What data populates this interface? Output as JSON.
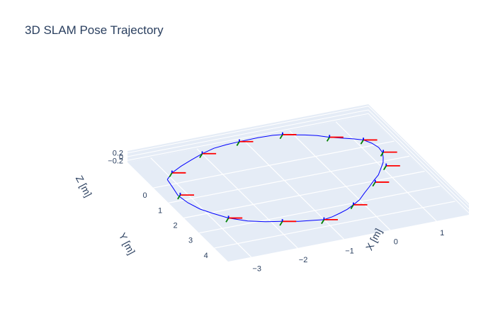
{
  "chart_data": {
    "type": "scatter3d",
    "title": "3D SLAM Pose Trajectory",
    "xlabel": "X [m]",
    "ylabel": "Y [m]",
    "zlabel": "Z [m]",
    "xlim": [
      -3.5,
      1.7
    ],
    "ylim": [
      -1.7,
      4.9
    ],
    "zlim": [
      -0.3,
      0.3
    ],
    "x_ticks": [
      {
        "v": -3,
        "t": "−3"
      },
      {
        "v": -2,
        "t": "−2"
      },
      {
        "v": -1,
        "t": "−1"
      },
      {
        "v": 0,
        "t": "0"
      },
      {
        "v": 1,
        "t": "1"
      }
    ],
    "y_ticks": [
      {
        "v": 0,
        "t": "0"
      },
      {
        "v": 1,
        "t": "1"
      },
      {
        "v": 2,
        "t": "2"
      },
      {
        "v": 3,
        "t": "3"
      },
      {
        "v": 4,
        "t": "4"
      }
    ],
    "z_ticks": [
      {
        "v": 0.2,
        "t": "0.2"
      },
      {
        "v": 0,
        "t": "0"
      },
      {
        "v": -0.2,
        "t": "−0.2"
      }
    ],
    "grid": true,
    "background": "#e5ecf6",
    "line_color": "#0000ff",
    "axis_colors": {
      "x": "#ff0000",
      "y": "#008000",
      "z": "#0000ff"
    },
    "series": [
      {
        "mode": "lines",
        "x": [
          -3.2,
          -3.0,
          -2.7,
          -2.4,
          -2.1,
          -1.8,
          -1.5,
          -1.2,
          -0.8,
          -0.5,
          -0.3,
          -0.1,
          0.1,
          0.3,
          0.5,
          0.7,
          0.9,
          1.05,
          1.15,
          1.2,
          1.18,
          1.1,
          1.0,
          0.85,
          0.7,
          0.5,
          0.3,
          0.1,
          -0.1,
          -0.3,
          -0.5,
          -0.7,
          -0.9,
          -1.1,
          -1.3,
          -1.6,
          -1.9,
          -2.2,
          -2.5,
          -2.8,
          -3.0,
          -3.15,
          -3.25,
          -3.3,
          -3.25,
          -3.2
        ],
        "y": [
          0.0,
          -0.3,
          -0.6,
          -0.85,
          -1.05,
          -1.2,
          -1.3,
          -1.35,
          -1.35,
          -1.3,
          -1.25,
          -1.1,
          -1.0,
          -0.8,
          -0.6,
          -0.45,
          -0.25,
          -0.05,
          0.2,
          0.5,
          0.8,
          1.1,
          1.4,
          1.7,
          2.0,
          2.3,
          2.6,
          2.9,
          3.2,
          3.4,
          3.6,
          3.75,
          3.85,
          3.9,
          3.85,
          3.75,
          3.6,
          3.4,
          3.15,
          2.8,
          2.4,
          2.0,
          1.5,
          1.0,
          0.5,
          0.0
        ],
        "z": [
          0.0,
          0.02,
          0.0,
          -0.02,
          0.01,
          0.03,
          0.0,
          -0.02,
          0.0,
          0.02,
          0.0,
          0.01,
          -0.01,
          0.02,
          0.0,
          -0.02,
          0.0,
          0.03,
          0.01,
          0.0,
          -0.01,
          0.0,
          0.02,
          0.0,
          -0.02,
          0.01,
          0.0,
          0.02,
          0.0,
          -0.01,
          0.0,
          0.02,
          0.0,
          -0.02,
          0.0,
          0.01,
          0.03,
          0.0,
          -0.02,
          0.0,
          0.02,
          0.0,
          -0.01,
          0.0,
          0.01,
          0.0
        ]
      }
    ],
    "pose_frames": {
      "x": [
        -3.0,
        -2.1,
        -1.2,
        -0.3,
        0.5,
        1.05,
        1.2,
        1.0,
        0.5,
        -0.3,
        -1.1,
        -1.9,
        -2.8,
        -3.25
      ],
      "y": [
        -0.3,
        -1.05,
        -1.35,
        -1.25,
        -0.6,
        -0.05,
        0.8,
        1.6,
        2.4,
        3.4,
        3.9,
        3.6,
        2.8,
        1.0
      ],
      "z": [
        0.02,
        0.01,
        -0.02,
        0.0,
        0.0,
        0.03,
        -0.01,
        0.0,
        0.01,
        -0.01,
        -0.02,
        0.03,
        0.0,
        0.0
      ]
    }
  }
}
